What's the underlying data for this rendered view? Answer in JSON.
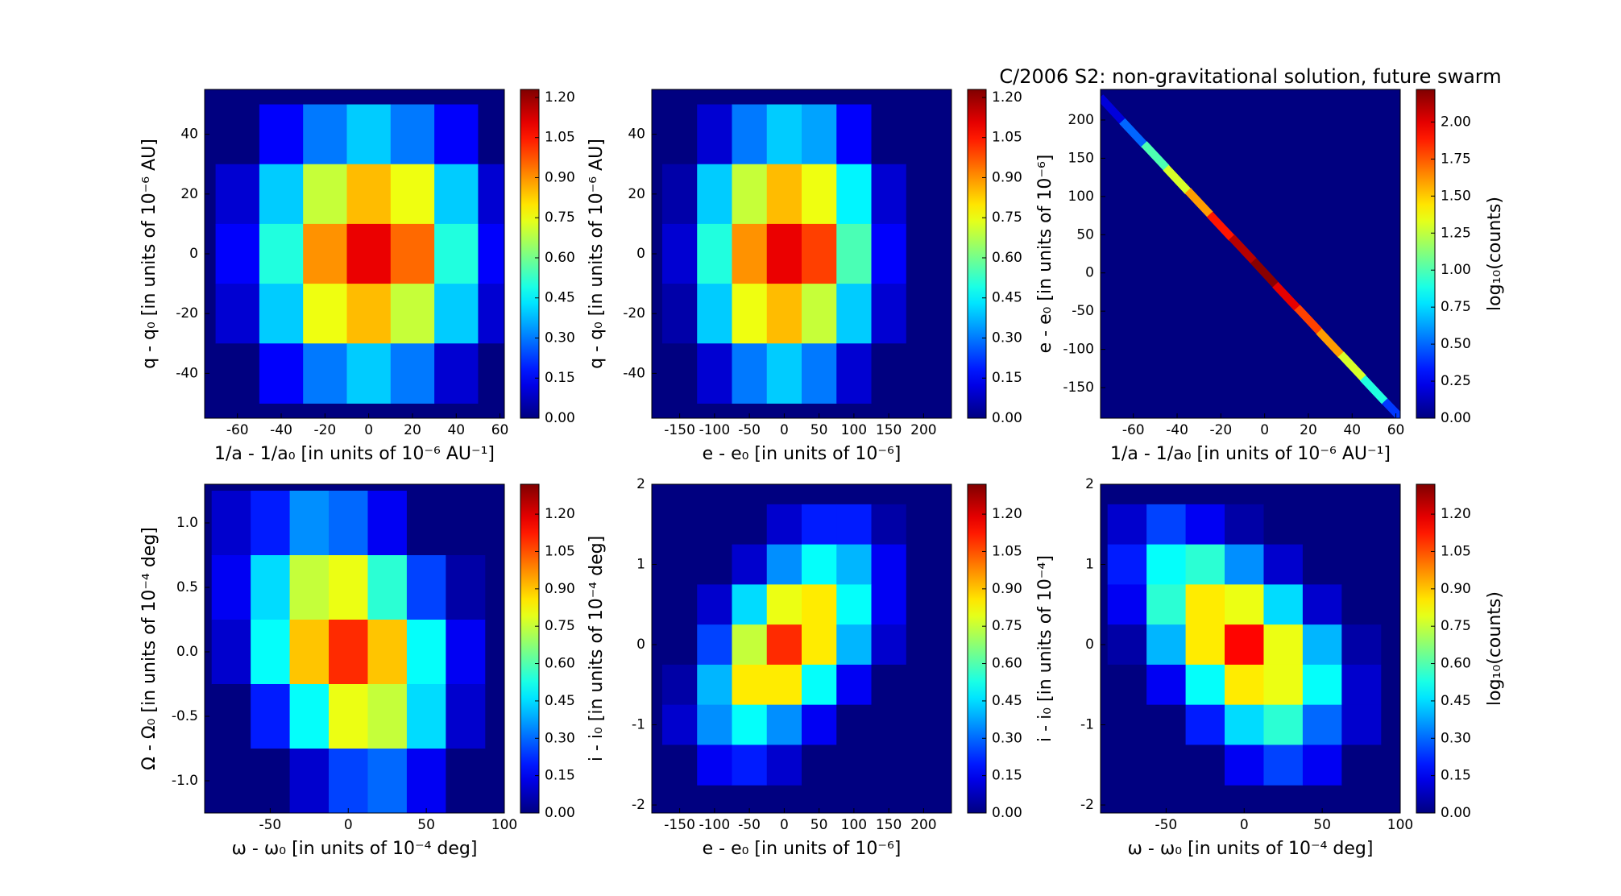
{
  "chart_data": [
    {
      "type": "hexbin",
      "xlabel": "1/a - 1/a₀ [in units of 10⁻⁶ AU⁻¹]",
      "ylabel": "q - q₀ [in units of 10⁻⁶ AU]",
      "xlim": [
        -75,
        62
      ],
      "xticks": [
        -60,
        -40,
        -20,
        0,
        20,
        40,
        60
      ],
      "ylim": [
        -55,
        55
      ],
      "yticks": [
        -40,
        -20,
        0,
        20,
        40
      ],
      "clim": [
        0,
        1.23
      ],
      "cticks": [
        {
          "value": 0,
          "label": "0.00"
        },
        {
          "value": 0.15,
          "label": "0.15"
        },
        {
          "value": 0.3,
          "label": "0.30"
        },
        {
          "value": 0.45,
          "label": "0.45"
        },
        {
          "value": 0.6,
          "label": "0.60"
        },
        {
          "value": 0.75,
          "label": "0.75"
        },
        {
          "value": 0.9,
          "label": "0.90"
        },
        {
          "value": 1.05,
          "label": "1.05"
        },
        {
          "value": 1.2,
          "label": "1.20"
        }
      ],
      "grid": {
        "x": [
          -60,
          -40,
          -20,
          0,
          20,
          40,
          60
        ],
        "y": [
          40,
          20,
          0,
          -20,
          -40
        ],
        "values": [
          [
            0,
            0.15,
            0.3,
            0.4,
            0.3,
            0.15,
            0
          ],
          [
            0.1,
            0.4,
            0.7,
            0.85,
            0.75,
            0.4,
            0.1
          ],
          [
            0.15,
            0.5,
            0.9,
            1.1,
            0.95,
            0.5,
            0.15
          ],
          [
            0.1,
            0.4,
            0.75,
            0.85,
            0.7,
            0.4,
            0.1
          ],
          [
            0,
            0.15,
            0.3,
            0.4,
            0.3,
            0.1,
            0
          ]
        ]
      }
    },
    {
      "type": "hexbin",
      "xlabel": "e - e₀ [in units of 10⁻⁶]",
      "ylabel": "q - q₀ [in units of 10⁻⁶ AU]",
      "xlim": [
        -190,
        240
      ],
      "xticks": [
        -150,
        -100,
        -50,
        0,
        50,
        100,
        150,
        200
      ],
      "ylim": [
        -55,
        55
      ],
      "yticks": [
        -40,
        -20,
        0,
        20,
        40
      ],
      "clim": [
        0,
        1.23
      ],
      "cticks": [
        {
          "value": 0,
          "label": "0.00"
        },
        {
          "value": 0.15,
          "label": "0.15"
        },
        {
          "value": 0.3,
          "label": "0.30"
        },
        {
          "value": 0.45,
          "label": "0.45"
        },
        {
          "value": 0.6,
          "label": "0.60"
        },
        {
          "value": 0.75,
          "label": "0.75"
        },
        {
          "value": 0.9,
          "label": "0.90"
        },
        {
          "value": 1.05,
          "label": "1.05"
        },
        {
          "value": 1.2,
          "label": "1.20"
        }
      ],
      "grid": {
        "x": [
          -150,
          -100,
          -50,
          0,
          50,
          100,
          150,
          200
        ],
        "y": [
          40,
          20,
          0,
          -20,
          -40
        ],
        "values": [
          [
            0,
            0.1,
            0.3,
            0.4,
            0.35,
            0.15,
            0,
            0
          ],
          [
            0.05,
            0.4,
            0.7,
            0.85,
            0.75,
            0.45,
            0.1,
            0
          ],
          [
            0.1,
            0.5,
            0.9,
            1.1,
            1.0,
            0.55,
            0.15,
            0
          ],
          [
            0.05,
            0.4,
            0.75,
            0.85,
            0.7,
            0.4,
            0.1,
            0
          ],
          [
            0,
            0.1,
            0.3,
            0.4,
            0.3,
            0.1,
            0,
            0
          ]
        ]
      }
    },
    {
      "type": "hexbin",
      "title": "C/2006 S2:  non-gravitational solution, future swarm",
      "xlabel": "1/a - 1/a₀ [in units of 10⁻⁶ AU⁻¹]",
      "ylabel": "e - e₀ [in units of 10⁻⁶]",
      "xlim": [
        -75,
        62
      ],
      "xticks": [
        -60,
        -40,
        -20,
        0,
        20,
        40,
        60
      ],
      "ylim": [
        -190,
        240
      ],
      "yticks": [
        -150,
        -100,
        -50,
        0,
        50,
        100,
        150,
        200
      ],
      "clim": [
        0,
        2.22
      ],
      "cticks": [
        {
          "value": 0,
          "label": "0.00"
        },
        {
          "value": 0.25,
          "label": "0.25"
        },
        {
          "value": 0.5,
          "label": "0.50"
        },
        {
          "value": 0.75,
          "label": "0.75"
        },
        {
          "value": 1,
          "label": "1.00"
        },
        {
          "value": 1.25,
          "label": "1.25"
        },
        {
          "value": 1.5,
          "label": "1.50"
        },
        {
          "value": 1.75,
          "label": "1.75"
        },
        {
          "value": 2,
          "label": "2.00"
        }
      ],
      "colorbar_label": "log₁₀(counts)",
      "points": {
        "x": [
          -70,
          -60,
          -50,
          -40,
          -30,
          -20,
          -10,
          0,
          10,
          20,
          30,
          40,
          50,
          60
        ],
        "y": [
          214,
          183,
          153,
          122,
          92,
          61,
          31,
          0,
          -31,
          -61,
          -92,
          -122,
          -153,
          -183
        ],
        "values": [
          0.2,
          0.5,
          1.0,
          1.3,
          1.6,
          1.9,
          2.1,
          2.2,
          2.0,
          1.8,
          1.6,
          1.3,
          0.9,
          0.4
        ]
      }
    },
    {
      "type": "hexbin",
      "xlabel": "ω - ω₀ [in units of 10⁻⁴ deg]",
      "ylabel": "Ω - Ω₀ [in units of 10⁻⁴ deg]",
      "xlim": [
        -92,
        100
      ],
      "xticks": [
        -50,
        0,
        50,
        100
      ],
      "ylim": [
        -1.25,
        1.3
      ],
      "yticks": [
        {
          "value": -1,
          "label": "-1.0"
        },
        {
          "value": -0.5,
          "label": "-0.5"
        },
        {
          "value": 0,
          "label": "0.0"
        },
        0.5,
        {
          "value": 1,
          "label": "1.0"
        }
      ],
      "clim": [
        0,
        1.32
      ],
      "cticks": [
        {
          "value": 0,
          "label": "0.00"
        },
        {
          "value": 0.15,
          "label": "0.15"
        },
        {
          "value": 0.3,
          "label": "0.30"
        },
        {
          "value": 0.45,
          "label": "0.45"
        },
        {
          "value": 0.6,
          "label": "0.60"
        },
        {
          "value": 0.75,
          "label": "0.75"
        },
        {
          "value": 0.9,
          "label": "0.90"
        },
        {
          "value": 1.05,
          "label": "1.05"
        },
        {
          "value": 1.2,
          "label": "1.20"
        }
      ],
      "grid": {
        "x": [
          -75,
          -50,
          -25,
          0,
          25,
          50,
          75
        ],
        "y": [
          1.0,
          0.5,
          0,
          -0.5,
          -1.0
        ],
        "values": [
          [
            0.1,
            0.2,
            0.35,
            0.3,
            0.15,
            0,
            0
          ],
          [
            0.15,
            0.45,
            0.75,
            0.8,
            0.55,
            0.25,
            0.05
          ],
          [
            0.1,
            0.5,
            0.9,
            1.1,
            0.9,
            0.5,
            0.15
          ],
          [
            0,
            0.2,
            0.5,
            0.8,
            0.75,
            0.45,
            0.1
          ],
          [
            0,
            0,
            0.1,
            0.25,
            0.3,
            0.15,
            0
          ]
        ]
      }
    },
    {
      "type": "hexbin",
      "xlabel": "e - e₀ [in units of 10⁻⁶]",
      "ylabel": "i - i₀ [in units of 10⁻⁴ deg]",
      "xlim": [
        -190,
        240
      ],
      "xticks": [
        -150,
        -100,
        -50,
        0,
        50,
        100,
        150,
        200
      ],
      "ylim": [
        -2.1,
        2
      ],
      "yticks": [
        -2,
        -1,
        0,
        1,
        2
      ],
      "clim": [
        0,
        1.32
      ],
      "cticks": [
        {
          "value": 0,
          "label": "0.00"
        },
        {
          "value": 0.15,
          "label": "0.15"
        },
        {
          "value": 0.3,
          "label": "0.30"
        },
        {
          "value": 0.45,
          "label": "0.45"
        },
        {
          "value": 0.6,
          "label": "0.60"
        },
        {
          "value": 0.75,
          "label": "0.75"
        },
        {
          "value": 0.9,
          "label": "0.90"
        },
        {
          "value": 1.05,
          "label": "1.05"
        },
        {
          "value": 1.2,
          "label": "1.20"
        }
      ],
      "grid": {
        "x": [
          -150,
          -100,
          -50,
          0,
          50,
          100,
          150,
          200
        ],
        "y": [
          1.5,
          1,
          0.5,
          0,
          -0.5,
          -1,
          -1.5
        ],
        "values": [
          [
            0,
            0,
            0,
            0.1,
            0.2,
            0.2,
            0.05,
            0
          ],
          [
            0,
            0,
            0.1,
            0.35,
            0.5,
            0.4,
            0.15,
            0
          ],
          [
            0,
            0.1,
            0.45,
            0.8,
            0.85,
            0.5,
            0.15,
            0
          ],
          [
            0,
            0.25,
            0.75,
            1.1,
            0.85,
            0.4,
            0.1,
            0
          ],
          [
            0.05,
            0.4,
            0.85,
            0.85,
            0.5,
            0.15,
            0,
            0
          ],
          [
            0.1,
            0.35,
            0.5,
            0.35,
            0.15,
            0,
            0,
            0
          ],
          [
            0,
            0.15,
            0.2,
            0.1,
            0,
            0,
            0,
            0
          ]
        ]
      }
    },
    {
      "type": "hexbin",
      "xlabel": "ω - ω₀ [in units of 10⁻⁴ deg]",
      "ylabel": "i - i₀ [in units of 10⁻⁴]",
      "xlim": [
        -92,
        100
      ],
      "xticks": [
        -50,
        0,
        50,
        100
      ],
      "ylim": [
        -2.1,
        2
      ],
      "yticks": [
        -2,
        -1,
        0,
        1,
        2
      ],
      "clim": [
        0,
        1.32
      ],
      "cticks": [
        {
          "value": 0,
          "label": "0.00"
        },
        {
          "value": 0.15,
          "label": "0.15"
        },
        {
          "value": 0.3,
          "label": "0.30"
        },
        {
          "value": 0.45,
          "label": "0.45"
        },
        {
          "value": 0.6,
          "label": "0.60"
        },
        {
          "value": 0.75,
          "label": "0.75"
        },
        {
          "value": 0.9,
          "label": "0.90"
        },
        {
          "value": 1.05,
          "label": "1.05"
        },
        {
          "value": 1.2,
          "label": "1.20"
        }
      ],
      "colorbar_label": "log₁₀(counts)",
      "grid": {
        "x": [
          -75,
          -50,
          -25,
          0,
          25,
          50,
          75
        ],
        "y": [
          1.5,
          1,
          0.5,
          0,
          -0.5,
          -1,
          -1.5
        ],
        "values": [
          [
            0.1,
            0.25,
            0.15,
            0.05,
            0,
            0,
            0
          ],
          [
            0.2,
            0.5,
            0.55,
            0.35,
            0.1,
            0,
            0
          ],
          [
            0.15,
            0.55,
            0.85,
            0.8,
            0.45,
            0.1,
            0
          ],
          [
            0.05,
            0.4,
            0.85,
            1.15,
            0.8,
            0.4,
            0.05
          ],
          [
            0,
            0.15,
            0.5,
            0.85,
            0.8,
            0.5,
            0.1
          ],
          [
            0,
            0,
            0.2,
            0.45,
            0.55,
            0.3,
            0.1
          ],
          [
            0,
            0,
            0,
            0.15,
            0.25,
            0.15,
            0
          ]
        ]
      }
    }
  ]
}
